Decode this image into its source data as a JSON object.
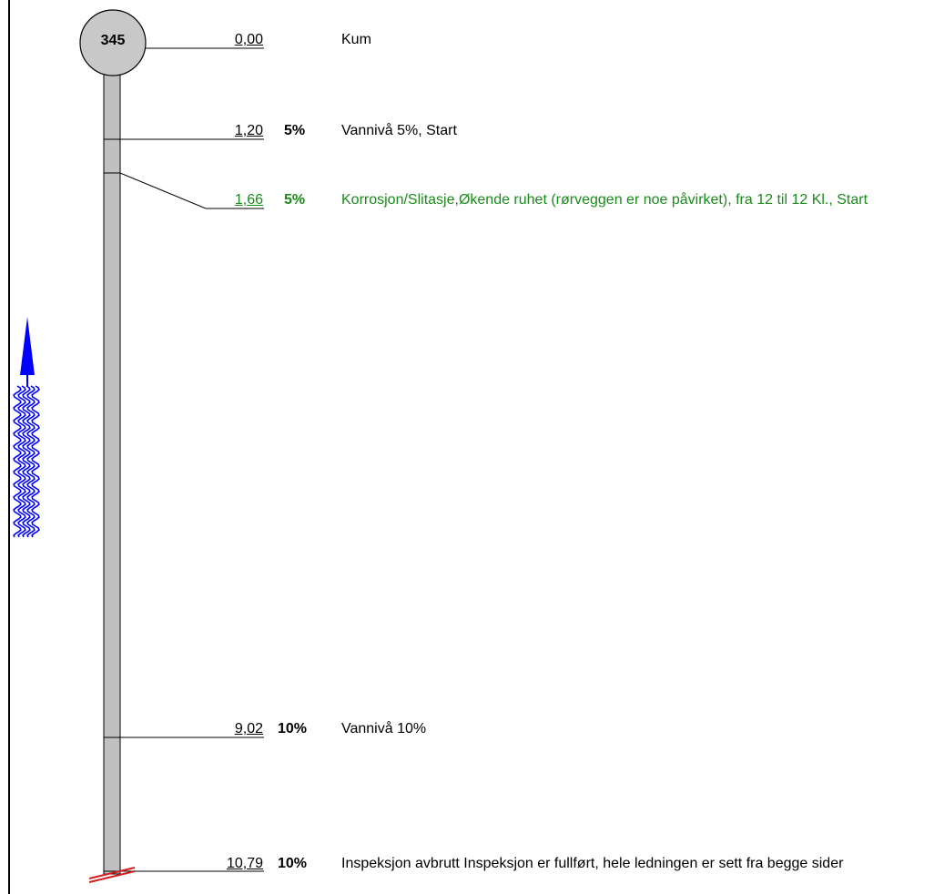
{
  "manhole": {
    "id": "345"
  },
  "colors": {
    "default_text": "#000000",
    "observation_text": "#1a8c1a",
    "pipe_fill": "#c0c0c0",
    "flow_arrow": "#0000ff",
    "end_marker": "#cc2222"
  },
  "flow_icon": "water-flow-upstream-arrow-icon",
  "end_icon": "pipe-end-break-icon",
  "entries": [
    {
      "distance": "0,00",
      "percent": "",
      "description": "Kum",
      "color": "#000000"
    },
    {
      "distance": "1,20",
      "percent": "5%",
      "description": "Vannivå 5%, Start",
      "color": "#000000"
    },
    {
      "distance": "1,66",
      "percent": "5%",
      "description": "Korrosjon/Slitasje,Økende ruhet (rørveggen er noe påvirket), fra 12 til 12 Kl., Start",
      "color": "#1a8c1a"
    },
    {
      "distance": "9,02",
      "percent": "10%",
      "description": "Vannivå 10%",
      "color": "#000000"
    },
    {
      "distance": "10,79",
      "percent": "10%",
      "description": "Inspeksjon avbrutt Inspeksjon er fullført, hele ledningen er sett fra begge sider",
      "color": "#000000"
    }
  ]
}
